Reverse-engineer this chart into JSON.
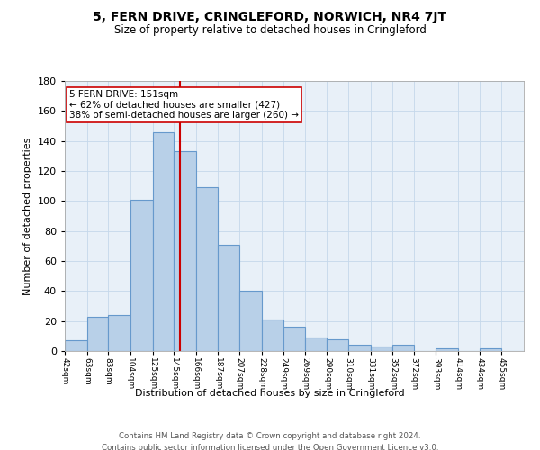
{
  "title": "5, FERN DRIVE, CRINGLEFORD, NORWICH, NR4 7JT",
  "subtitle": "Size of property relative to detached houses in Cringleford",
  "xlabel": "Distribution of detached houses by size in Cringleford",
  "ylabel": "Number of detached properties",
  "bins": [
    "42sqm",
    "63sqm",
    "83sqm",
    "104sqm",
    "125sqm",
    "145sqm",
    "166sqm",
    "187sqm",
    "207sqm",
    "228sqm",
    "249sqm",
    "269sqm",
    "290sqm",
    "310sqm",
    "331sqm",
    "352sqm",
    "372sqm",
    "393sqm",
    "414sqm",
    "434sqm",
    "455sqm"
  ],
  "values": [
    7,
    23,
    24,
    101,
    146,
    133,
    109,
    71,
    40,
    21,
    16,
    9,
    8,
    4,
    3,
    4,
    0,
    2,
    0,
    2,
    0
  ],
  "bar_color": "#b8d0e8",
  "bar_edge_color": "#6699cc",
  "vline_color": "#cc0000",
  "annotation_text": "5 FERN DRIVE: 151sqm\n← 62% of detached houses are smaller (427)\n38% of semi-detached houses are larger (260) →",
  "annotation_box_color": "#ffffff",
  "annotation_box_edge": "#cc0000",
  "ylim": [
    0,
    180
  ],
  "yticks": [
    0,
    20,
    40,
    60,
    80,
    100,
    120,
    140,
    160,
    180
  ],
  "footer_line1": "Contains HM Land Registry data © Crown copyright and database right 2024.",
  "footer_line2": "Contains public sector information licensed under the Open Government Licence v3.0.",
  "bin_edges": [
    42,
    63,
    83,
    104,
    125,
    145,
    166,
    187,
    207,
    228,
    249,
    269,
    290,
    310,
    331,
    352,
    372,
    393,
    414,
    434,
    455,
    476
  ],
  "vline_x": 151
}
